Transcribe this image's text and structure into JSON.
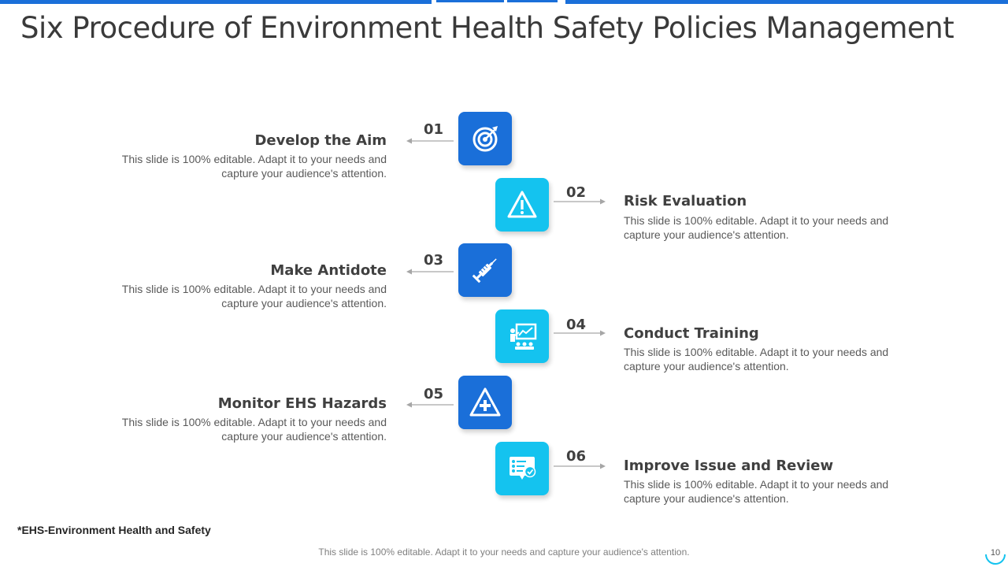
{
  "title": "Six Procedure of Environment Health Safety Policies Management",
  "steps": [
    {
      "number": "01",
      "heading": "Develop the Aim",
      "description": "This slide is 100% editable. Adapt it to your needs and capture your audience's attention.",
      "icon": "target-icon"
    },
    {
      "number": "02",
      "heading": "Risk Evaluation",
      "description": "This slide is 100% editable. Adapt it to your needs and capture your audience's attention.",
      "icon": "warning-icon"
    },
    {
      "number": "03",
      "heading": "Make Antidote",
      "description": "This slide is 100% editable. Adapt it to your needs and capture your audience's attention.",
      "icon": "syringe-icon"
    },
    {
      "number": "04",
      "heading": "Conduct Training",
      "description": "This slide is 100% editable. Adapt it to your needs and capture your audience's attention.",
      "icon": "presentation-icon"
    },
    {
      "number": "05",
      "heading": "Monitor EHS Hazards",
      "description": "This slide is 100% editable. Adapt it to your needs and capture your audience's attention.",
      "icon": "hazard-plus-icon"
    },
    {
      "number": "06",
      "heading": "Improve Issue and Review",
      "description": "This slide is 100% editable. Adapt it to your needs and capture your audience's attention.",
      "icon": "review-checklist-icon"
    }
  ],
  "footnote": "*EHS-Environment Health and Safety",
  "footer": "This slide is 100% editable. Adapt it to your needs and capture your audience's attention.",
  "page_number": "10",
  "colors": {
    "dark_blue": "#1a6fd9",
    "light_blue": "#14c3ef",
    "text": "#404040"
  }
}
